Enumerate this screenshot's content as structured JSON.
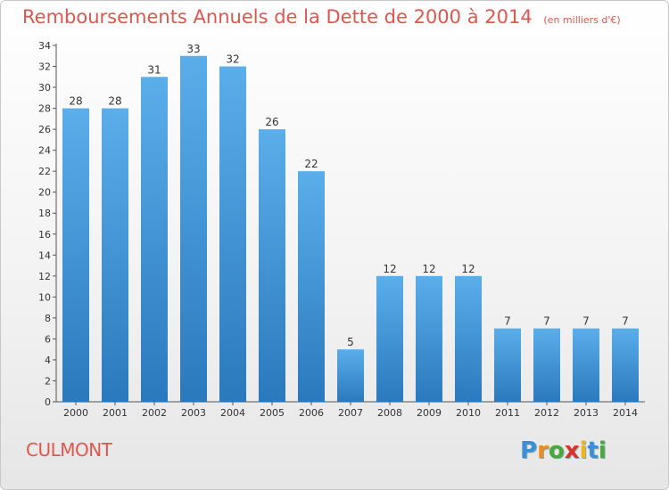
{
  "header": {
    "title": "Remboursements Annuels de la Dette de 2000 à 2014",
    "subtitle": "(en milliers d'€)"
  },
  "footer": {
    "place": "CULMONT",
    "logo_letters": [
      "P",
      "r",
      "o",
      "x",
      "i",
      "t",
      "i"
    ]
  },
  "colors": {
    "bar_top": "#5aaeea",
    "bar_bottom": "#2b79bd",
    "title": "#e0564d"
  },
  "chart_data": {
    "type": "bar",
    "categories": [
      "2000",
      "2001",
      "2002",
      "2003",
      "2004",
      "2005",
      "2006",
      "2007",
      "2008",
      "2009",
      "2010",
      "2011",
      "2012",
      "2013",
      "2014"
    ],
    "values": [
      28,
      28,
      31,
      33,
      32,
      26,
      22,
      5,
      12,
      12,
      12,
      7,
      7,
      7,
      7
    ],
    "ylim": [
      0,
      34
    ],
    "yticks": [
      0,
      2,
      4,
      6,
      8,
      10,
      12,
      14,
      16,
      18,
      20,
      22,
      24,
      26,
      28,
      30,
      32,
      34
    ],
    "data_labels": true,
    "grid": false
  }
}
